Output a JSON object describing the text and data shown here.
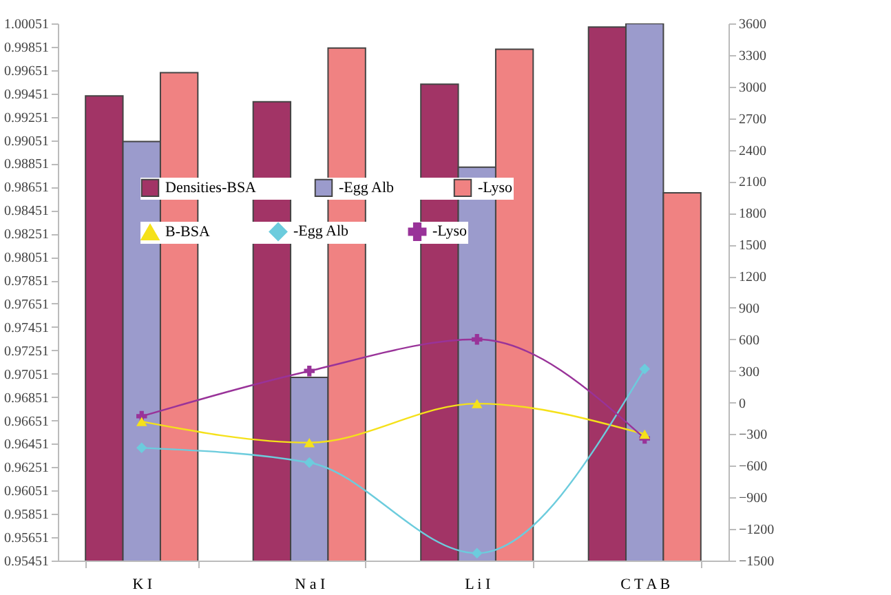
{
  "chart_data": {
    "type": "bar",
    "categories": [
      "K I",
      "N a I",
      "L i I",
      "C T A B"
    ],
    "series": [
      {
        "name": "Densities-BSA",
        "color": "#a23466",
        "values": [
          0.9943,
          0.9938,
          0.9953,
          1.0002
        ]
      },
      {
        "name": "-Egg Alb",
        "color": "#9b9bcc",
        "values": [
          0.9904,
          0.9702,
          0.9882,
          1.0005
        ]
      },
      {
        "name": "-Lyso",
        "color": "#f08282",
        "values": [
          0.9963,
          0.9984,
          0.9983,
          0.986
        ]
      },
      {
        "name": "B-BSA",
        "type": "line",
        "axis": "y2",
        "marker": "triangle",
        "color": "#f5e11a",
        "values": [
          -180,
          -380,
          -10,
          -300
        ]
      },
      {
        "name": "-Egg Alb",
        "type": "line",
        "axis": "y2",
        "marker": "diamond",
        "color": "#6cccdd",
        "values": [
          -430,
          -570,
          -1430,
          320
        ]
      },
      {
        "name": "-Lyso",
        "type": "line",
        "axis": "y2",
        "marker": "cross",
        "color": "#993399",
        "values": [
          -130,
          300,
          600,
          -340
        ]
      }
    ],
    "ylim": [
      0.95451,
      1.00051
    ],
    "yticks": [
      0.95451,
      0.95651,
      0.95851,
      0.96051,
      0.96251,
      0.96451,
      0.96651,
      0.96851,
      0.97051,
      0.97251,
      0.97451,
      0.97651,
      0.97851,
      0.98051,
      0.98251,
      0.98451,
      0.98651,
      0.98851,
      0.99051,
      0.99251,
      0.99451,
      0.99651,
      0.99851,
      1.00051
    ],
    "y2lim": [
      -1500,
      3600
    ],
    "y2ticks": [
      -1500,
      -1200,
      -900,
      -600,
      -300,
      0,
      300,
      600,
      900,
      1200,
      1500,
      1800,
      2100,
      2400,
      2700,
      3000,
      3300,
      3600
    ],
    "legend": "top",
    "grid": false
  }
}
